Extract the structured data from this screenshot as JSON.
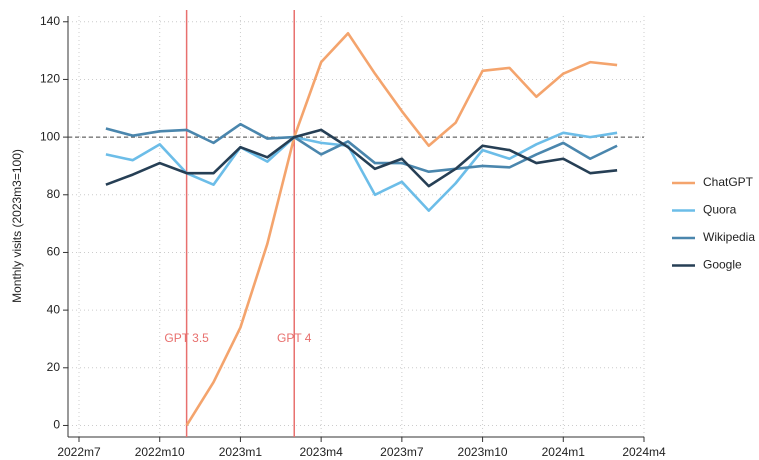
{
  "chart_data": {
    "type": "line",
    "ylabel": "Monthly visits (2023m3=100)",
    "x": [
      "2022m8",
      "2022m9",
      "2022m10",
      "2022m11",
      "2022m12",
      "2023m1",
      "2023m2",
      "2023m3",
      "2023m4",
      "2023m5",
      "2023m6",
      "2023m7",
      "2023m8",
      "2023m9",
      "2023m10",
      "2023m11",
      "2023m12",
      "2024m1",
      "2024m2",
      "2024m3"
    ],
    "series": [
      {
        "name": "ChatGPT",
        "color": "#f4a46d",
        "values": [
          null,
          null,
          null,
          0,
          15,
          34,
          63,
          100,
          126,
          136,
          122,
          109,
          97,
          105,
          123,
          124,
          114,
          122,
          126,
          125
        ]
      },
      {
        "name": "Quora",
        "color": "#6cbde8",
        "values": [
          94,
          92,
          97.5,
          87.5,
          83.5,
          96.5,
          91.5,
          100,
          98,
          97,
          80,
          84.5,
          74.5,
          84,
          95.5,
          92.5,
          97.5,
          101.5,
          100,
          101.5
        ]
      },
      {
        "name": "Wikipedia",
        "color": "#4a86ad",
        "values": [
          103,
          100.5,
          102,
          102.5,
          98,
          104.5,
          99.5,
          100,
          94,
          98.5,
          91,
          91,
          88,
          89,
          90,
          89.5,
          94,
          98,
          92.5,
          97
        ]
      },
      {
        "name": "Google",
        "color": "#263f55",
        "values": [
          83.5,
          87,
          91,
          87.5,
          87.5,
          96.5,
          93,
          100,
          102.5,
          96.5,
          89,
          92.5,
          83,
          89,
          97,
          95.5,
          91,
          92.5,
          87.5,
          88.5
        ]
      }
    ],
    "xlim": [
      "2022m7",
      "2024m4"
    ],
    "xticks": [
      "2022m7",
      "2022m10",
      "2023m1",
      "2023m4",
      "2023m7",
      "2023m10",
      "2024m1",
      "2024m4"
    ],
    "ylim": [
      -4,
      142
    ],
    "yticks": [
      0,
      20,
      40,
      60,
      80,
      100,
      120,
      140
    ],
    "grid": true,
    "hline": 100,
    "annotations": [
      {
        "x": "2022m11",
        "label": "GPT 3.5",
        "color": "#e8706e"
      },
      {
        "x": "2023m3",
        "label": "GPT 4",
        "color": "#e8706e"
      }
    ],
    "legend": "right"
  }
}
